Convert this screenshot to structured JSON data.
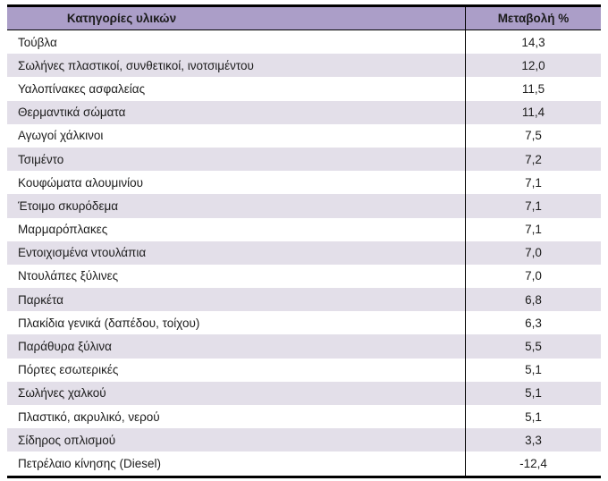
{
  "colors": {
    "header_bg": "#ab9ec8",
    "stripe_bg": "#e3dfe9",
    "border": "#000000",
    "text": "#1c1c1c"
  },
  "table": {
    "headers": {
      "category": "Κατηγορίες υλικών",
      "change": "Μεταβολή %"
    },
    "rows": [
      {
        "category": "Τούβλα",
        "change": "14,3"
      },
      {
        "category": "Σωλήνες πλαστικοί, συνθετικοί, ινοτσιμέντου",
        "change": "12,0"
      },
      {
        "category": "Υαλοπίνακες ασφαλείας",
        "change": "11,5"
      },
      {
        "category": "Θερμαντικά σώματα",
        "change": "11,4"
      },
      {
        "category": "Αγωγοί χάλκινοι",
        "change": "7,5"
      },
      {
        "category": "Τσιμέντο",
        "change": "7,2"
      },
      {
        "category": "Κουφώματα αλουμινίου",
        "change": "7,1"
      },
      {
        "category": "Έτοιμο σκυρόδεμα",
        "change": "7,1"
      },
      {
        "category": "Μαρμαρόπλακες",
        "change": "7,1"
      },
      {
        "category": "Εντοιχισμένα ντουλάπια",
        "change": "7,0"
      },
      {
        "category": "Ντουλάπες ξύλινες",
        "change": "7,0"
      },
      {
        "category": "Παρκέτα",
        "change": "6,8"
      },
      {
        "category": "Πλακίδια γενικά (δαπέδου, τοίχου)",
        "change": "6,3"
      },
      {
        "category": "Παράθυρα ξύλινα",
        "change": "5,5"
      },
      {
        "category": "Πόρτες εσωτερικές",
        "change": "5,1"
      },
      {
        "category": "Σωλήνες χαλκού",
        "change": "5,1"
      },
      {
        "category": "Πλαστικό, ακρυλικό, νερού",
        "change": "5,1"
      },
      {
        "category": "Σίδηρος οπλισμού",
        "change": "3,3"
      },
      {
        "category": "Πετρέλαιο κίνησης (Diesel)",
        "change": "-12,4"
      }
    ]
  }
}
